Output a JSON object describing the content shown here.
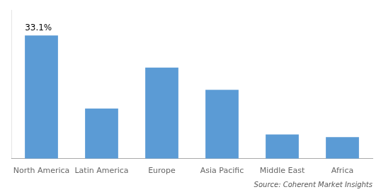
{
  "chart_data": {
    "type": "bar",
    "categories": [
      "North America",
      "Latin America",
      "Europe",
      "Asia Pacific",
      "Middle East",
      "Africa"
    ],
    "values": [
      33.1,
      13.5,
      24.5,
      18.5,
      6.5,
      5.8
    ],
    "color": "#5B9BD5",
    "ylim": [
      0,
      40
    ],
    "grid": false,
    "tick_labels": "x",
    "annotations": [
      {
        "text": "33.1%",
        "category": "North America",
        "value": 33.1
      }
    ],
    "source": "Source: Coherent Market Insights"
  }
}
